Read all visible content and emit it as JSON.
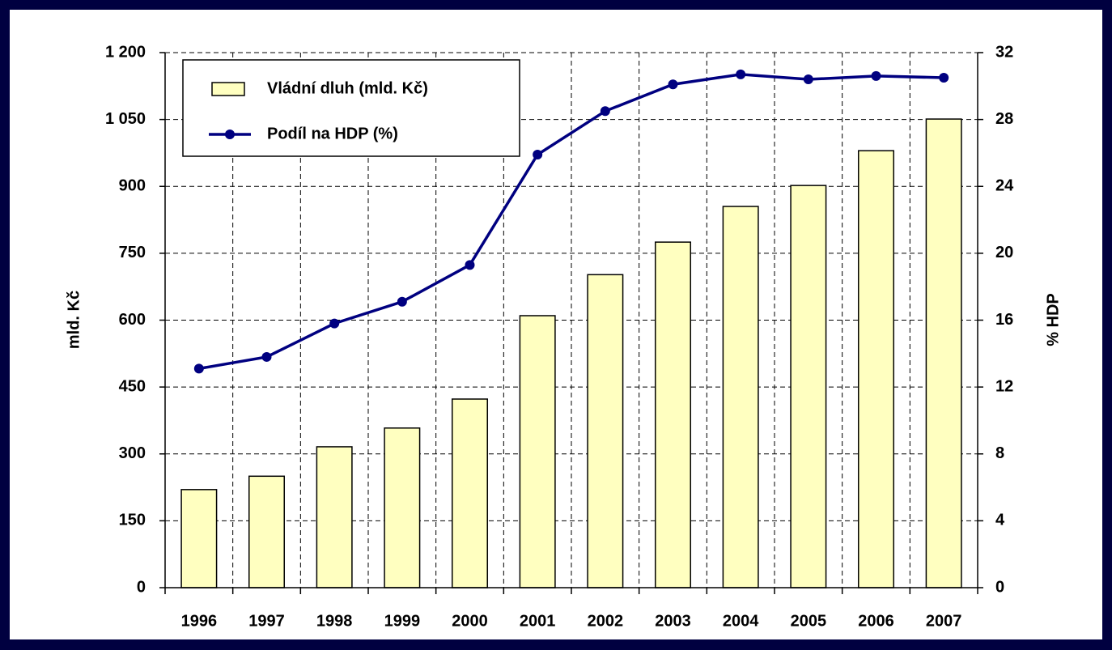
{
  "chart_data": {
    "type": "bar-line",
    "categories": [
      "1996",
      "1997",
      "1998",
      "1999",
      "2000",
      "2001",
      "2002",
      "2003",
      "2004",
      "2005",
      "2006",
      "2007"
    ],
    "series": [
      {
        "name": "Vládní dluh (mld. Kč)",
        "type": "bar",
        "color": "#ffffc0",
        "values": [
          220,
          250,
          316,
          358,
          423,
          610,
          702,
          775,
          855,
          902,
          980,
          1051
        ]
      },
      {
        "name": "Podíl na HDP (%)",
        "type": "line",
        "axis": "y2",
        "color": "#000080",
        "values": [
          13.1,
          13.8,
          15.8,
          17.1,
          19.3,
          25.9,
          28.5,
          30.1,
          30.7,
          30.4,
          30.6,
          30.5
        ]
      }
    ],
    "ylabel": "mld. Kč",
    "y2label": "% HDP",
    "ylim": [
      0,
      1200
    ],
    "yticks": [
      0,
      150,
      300,
      450,
      600,
      750,
      900,
      {
        "value": 1050,
        "label": "1 050"
      },
      {
        "value": 1200,
        "label": "1 200"
      }
    ],
    "y2lim": [
      0,
      32
    ],
    "y2ticks": [
      0,
      4,
      8,
      12,
      16,
      20,
      24,
      28,
      32
    ],
    "grid": true,
    "legend": "upper left"
  }
}
